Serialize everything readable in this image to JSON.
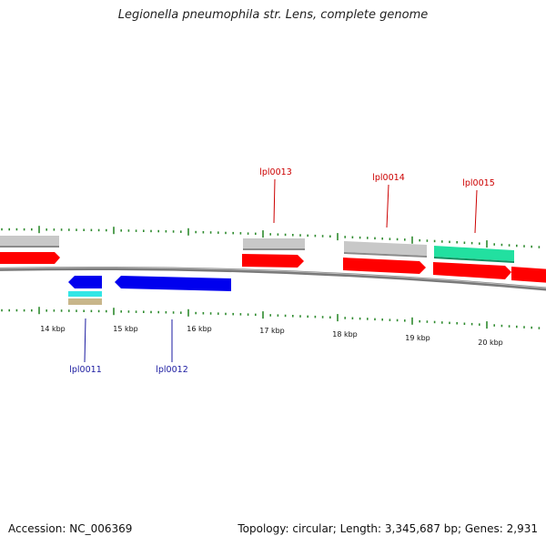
{
  "header": {
    "title": "Legionella pneumophila str. Lens, complete genome"
  },
  "footer": {
    "accession": "Accession: NC_006369",
    "summary": "Topology: circular; Length: 3,345,687 bp; Genes: 2,931"
  },
  "colors": {
    "backbone": "#888888",
    "tick": "#2e8b2e",
    "forward_gene": "#ff0000",
    "reverse_gene": "#0000ee",
    "forward_label": "#cc0000",
    "reverse_label": "#1a1aa0",
    "gray_feature": "#c8c8c8",
    "teal_feature": "#22e0a0",
    "cyan_feature": "#33e6e6",
    "khaki_feature": "#c8b68a",
    "scale_text": "#111111"
  },
  "scale": {
    "unit": "kbp",
    "labels": [
      "14 kbp",
      "15 kbp",
      "16 kbp",
      "17 kbp",
      "18 kbp",
      "19 kbp",
      "20 kbp"
    ]
  },
  "genes": [
    {
      "id": "lpl0013",
      "label": "lpl0013",
      "strand": "+"
    },
    {
      "id": "lpl0014",
      "label": "lpl0014",
      "strand": "+"
    },
    {
      "id": "lpl0015",
      "label": "lpl0015",
      "strand": "+"
    },
    {
      "id": "lpl0011",
      "label": "lpl0011",
      "strand": "-"
    },
    {
      "id": "lpl0012",
      "label": "lpl0012",
      "strand": "-"
    }
  ]
}
